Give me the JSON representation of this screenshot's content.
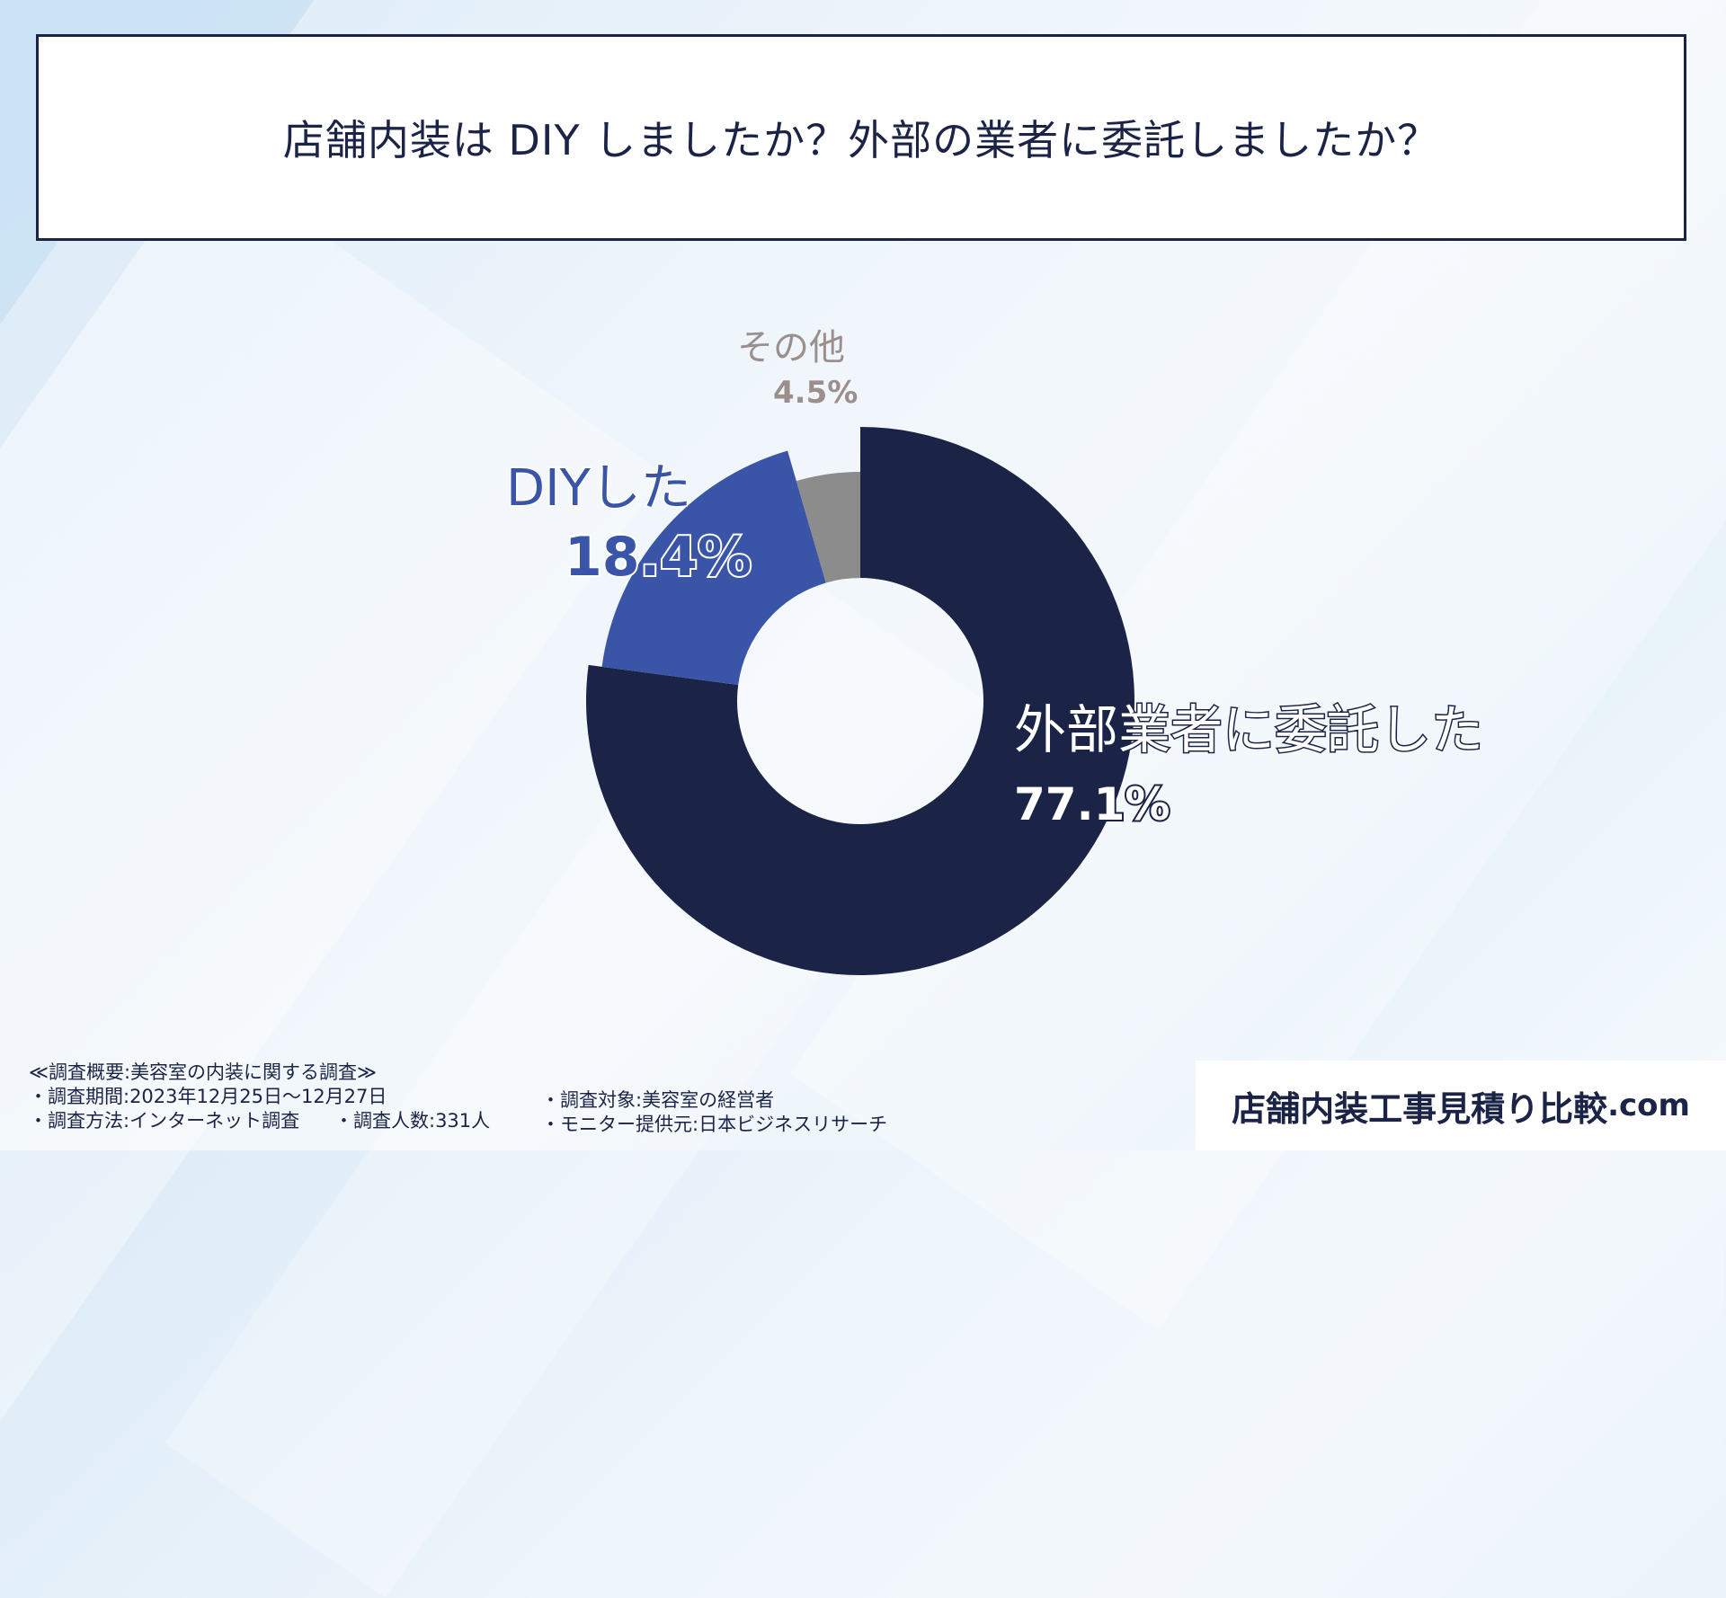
{
  "title": "店舗内装は DIY しましたか？外部の業者に委託しましたか？",
  "chart_data": {
    "type": "pie",
    "donut": true,
    "categories": [
      "外部業者に委託した",
      "DIYした",
      "その他"
    ],
    "values": [
      77.1,
      18.4,
      4.5
    ],
    "labels": [
      "77.1%",
      "18.4%",
      "4.5%"
    ],
    "colors": [
      "#1b2447",
      "#3a55a8",
      "#8c8c8c"
    ],
    "label_colors": [
      "#ffffff",
      "#3a55a8",
      "#9a8f8c"
    ]
  },
  "footer": {
    "overview": "≪調査概要:美容室の内装に関する調査≫",
    "period": "・調査期間:2023年12月25日～12月27日",
    "method": "・調査方法:インターネット調査",
    "respondents": "・調査人数:331人",
    "target": "・調査対象:美容室の経営者",
    "provider": "・モニター提供元:日本ビジネスリサーチ"
  },
  "brand": {
    "name": "店舗内装工事見積り比較",
    "suffix": ".com"
  }
}
